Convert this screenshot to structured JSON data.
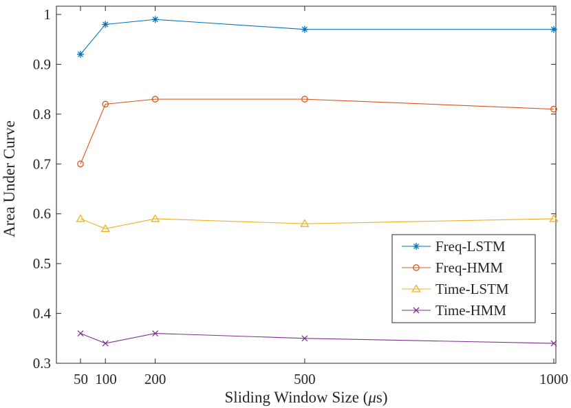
{
  "chart_data": {
    "type": "line",
    "title": "",
    "xlabel_pre": "Sliding Window Size (",
    "xlabel_mu": "μ",
    "xlabel_post": "s)",
    "ylabel": "Area Under Curve",
    "x": [
      50,
      100,
      200,
      500,
      1000
    ],
    "xlim": [
      50,
      1000
    ],
    "ylim": [
      0.3,
      1.0
    ],
    "xticks": [
      50,
      100,
      200,
      500,
      1000
    ],
    "xtick_labels": [
      "50",
      "100",
      "200",
      "500",
      "1000"
    ],
    "yticks": [
      0.3,
      0.4,
      0.5,
      0.6,
      0.7,
      0.8,
      0.9,
      1.0
    ],
    "ytick_labels": [
      "0.3",
      "0.4",
      "0.5",
      "0.6",
      "0.7",
      "0.8",
      "0.9",
      "1"
    ],
    "grid": false,
    "legend_position": "right",
    "series": [
      {
        "name": "Freq-LSTM",
        "marker": "asterisk",
        "color": "#0072BD",
        "values": [
          0.92,
          0.98,
          0.99,
          0.97,
          0.97
        ]
      },
      {
        "name": "Freq-HMM",
        "marker": "circle",
        "color": "#D95319",
        "values": [
          0.7,
          0.82,
          0.83,
          0.83,
          0.81
        ]
      },
      {
        "name": "Time-LSTM",
        "marker": "triangle",
        "color": "#EDB120",
        "values": [
          0.59,
          0.57,
          0.59,
          0.58,
          0.59
        ]
      },
      {
        "name": "Time-HMM",
        "marker": "cross",
        "color": "#7E2F8E",
        "values": [
          0.36,
          0.34,
          0.36,
          0.35,
          0.34
        ]
      }
    ]
  }
}
